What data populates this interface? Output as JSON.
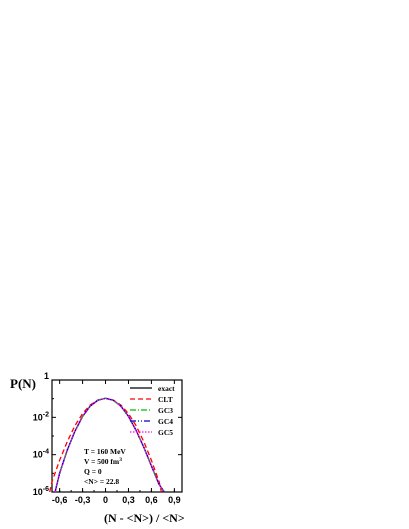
{
  "chart_data": {
    "type": "line",
    "title": "",
    "xlabel": "(N - <N>) / <N>",
    "ylabel": "P(N)",
    "xlim": [
      -0.7,
      1.0
    ],
    "ylim_log10": [
      -6,
      0
    ],
    "yscale": "log",
    "grid": false,
    "legend_position": "top-right",
    "x_ticks": [
      {
        "value": -0.6,
        "label": "-0,6"
      },
      {
        "value": -0.3,
        "label": "-0,3"
      },
      {
        "value": 0.0,
        "label": "0"
      },
      {
        "value": 0.3,
        "label": "0,3"
      },
      {
        "value": 0.6,
        "label": "0,6"
      },
      {
        "value": 0.9,
        "label": "0,9"
      }
    ],
    "y_ticks": [
      {
        "exp": 0,
        "base": "",
        "sup": "1"
      },
      {
        "exp": -2,
        "base": "10",
        "sup": "-2"
      },
      {
        "exp": -4,
        "base": "10",
        "sup": "-4"
      },
      {
        "exp": -6,
        "base": "10",
        "sup": "-6"
      }
    ],
    "series": [
      {
        "name": "exact",
        "color": "#000000",
        "dash": "",
        "x": [
          -0.66,
          -0.6,
          -0.5,
          -0.4,
          -0.3,
          -0.2,
          -0.1,
          0.0,
          0.1,
          0.2,
          0.3,
          0.4,
          0.5,
          0.6,
          0.7,
          0.77
        ],
        "log10_y": [
          -6.0,
          -5.0,
          -3.75,
          -2.75,
          -1.95,
          -1.4,
          -1.08,
          -0.98,
          -1.08,
          -1.4,
          -1.95,
          -2.7,
          -3.6,
          -4.6,
          -5.6,
          -6.0
        ]
      },
      {
        "name": "CLT",
        "color": "#ff0000",
        "dash": "5,3",
        "x": [
          -0.73,
          -0.7,
          -0.6,
          -0.5,
          -0.4,
          -0.3,
          -0.2,
          -0.1,
          0.0,
          0.1,
          0.2,
          0.3,
          0.4,
          0.5,
          0.6,
          0.7,
          0.73
        ],
        "log10_y": [
          -6.0,
          -5.45,
          -4.3,
          -3.3,
          -2.45,
          -1.8,
          -1.34,
          -1.07,
          -0.98,
          -1.07,
          -1.34,
          -1.8,
          -2.45,
          -3.3,
          -4.3,
          -5.45,
          -6.0
        ]
      },
      {
        "name": "GC3",
        "color": "#00bb00",
        "dash": "6,2,1,2",
        "x": [
          -0.66,
          -0.6,
          -0.5,
          -0.4,
          -0.3,
          -0.2,
          -0.1,
          0.0,
          0.1,
          0.2,
          0.3,
          0.4,
          0.5,
          0.6,
          0.7,
          0.77
        ],
        "log10_y": [
          -6.0,
          -5.0,
          -3.75,
          -2.75,
          -1.95,
          -1.4,
          -1.08,
          -0.98,
          -1.08,
          -1.4,
          -1.95,
          -2.7,
          -3.6,
          -4.6,
          -5.6,
          -6.0
        ]
      },
      {
        "name": "GC4",
        "color": "#0000cc",
        "dash": "6,2,1,2,1,2",
        "x": [
          -0.66,
          -0.6,
          -0.5,
          -0.4,
          -0.3,
          -0.2,
          -0.1,
          0.0,
          0.1,
          0.2,
          0.3,
          0.4,
          0.5,
          0.6,
          0.7,
          0.77
        ],
        "log10_y": [
          -6.0,
          -5.0,
          -3.75,
          -2.75,
          -1.95,
          -1.4,
          -1.08,
          -0.98,
          -1.08,
          -1.4,
          -1.95,
          -2.7,
          -3.6,
          -4.6,
          -5.6,
          -6.0
        ]
      },
      {
        "name": "GC5",
        "color": "#ff00ff",
        "dash": "1.5,1.5",
        "x": [
          -0.66,
          -0.6,
          -0.5,
          -0.4,
          -0.3,
          -0.2,
          -0.1,
          0.0,
          0.1,
          0.2,
          0.3,
          0.4,
          0.5,
          0.6,
          0.7,
          0.77
        ],
        "log10_y": [
          -6.0,
          -5.0,
          -3.75,
          -2.75,
          -1.95,
          -1.4,
          -1.08,
          -0.98,
          -1.08,
          -1.4,
          -1.95,
          -2.7,
          -3.6,
          -4.6,
          -5.6,
          -6.0
        ]
      }
    ],
    "annotations": [
      {
        "text": "T = 160 MeV"
      },
      {
        "text": "V = 500 fm",
        "sup": "3"
      },
      {
        "text": "Q = 0"
      },
      {
        "text": "<N> = 22.8"
      }
    ]
  }
}
